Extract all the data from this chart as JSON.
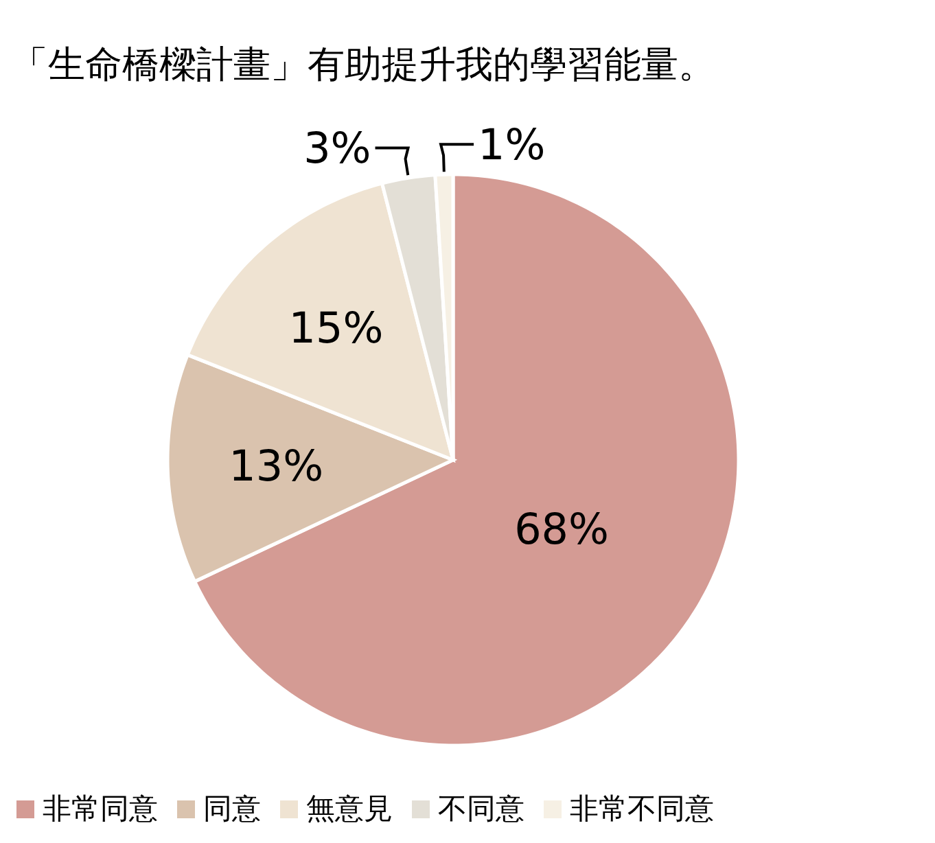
{
  "chart_data": {
    "type": "pie",
    "title": "「生命橋樑計畫」有助提升我的學習能量。",
    "categories": [
      "非常同意",
      "同意",
      "無意見",
      "不同意",
      "非常不同意"
    ],
    "values": [
      68,
      13,
      15,
      3,
      1
    ],
    "value_labels": [
      "68%",
      "13%",
      "15%",
      "3%",
      "1%"
    ],
    "colors": [
      "#d49b94",
      "#dac3ae",
      "#efe3d2",
      "#e3dfd6",
      "#f6f0e4"
    ],
    "legend": "bottom"
  }
}
